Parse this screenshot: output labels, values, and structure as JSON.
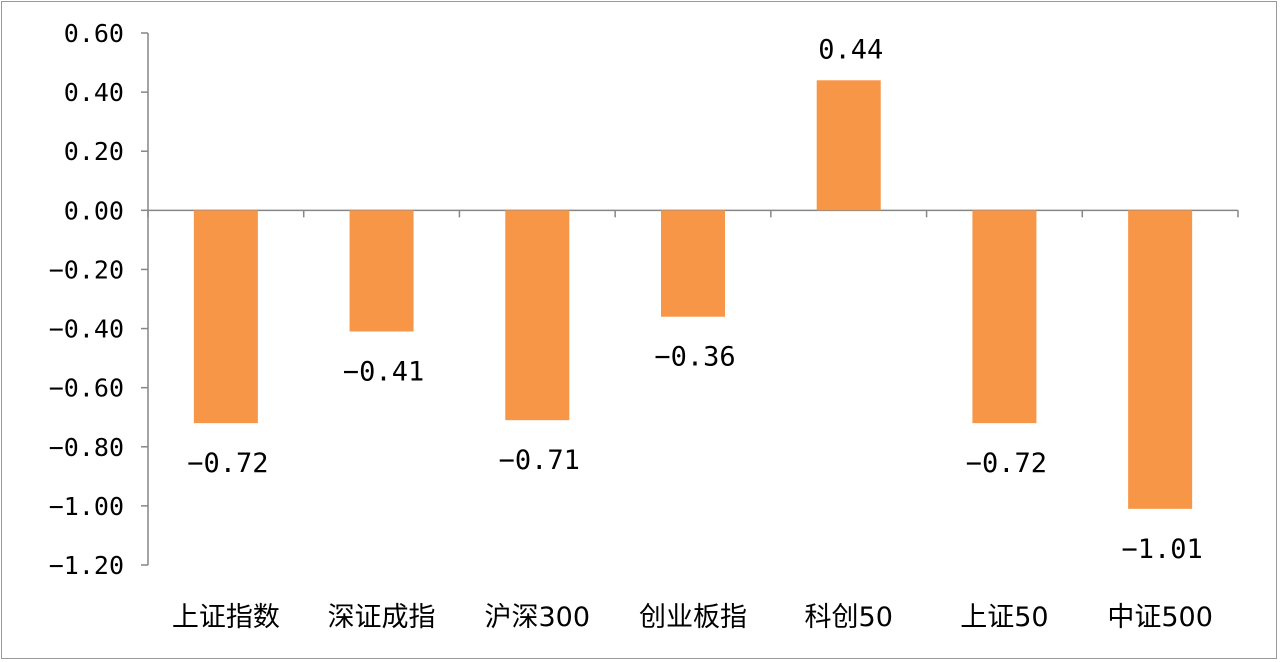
{
  "chart_data": {
    "type": "bar",
    "title": "",
    "xlabel": "",
    "ylabel": "",
    "categories": [
      "上证指数",
      "深证成指",
      "沪深300",
      "创业板指",
      "科创50",
      "上证50",
      "中证500"
    ],
    "values": [
      -0.72,
      -0.41,
      -0.71,
      -0.36,
      0.44,
      -0.72,
      -1.01
    ],
    "value_labels": [
      "−0.72",
      "−0.41",
      "−0.71",
      "−0.36",
      "0.44",
      "−0.72",
      "−1.01"
    ],
    "ylim": [
      -1.2,
      0.6
    ],
    "yticks": [
      0.6,
      0.4,
      0.2,
      0.0,
      -0.2,
      -0.4,
      -0.6,
      -0.8,
      -1.0,
      -1.2
    ],
    "ytick_labels": [
      "0.60",
      "0.40",
      "0.20",
      "0.00",
      "−0.20",
      "−0.40",
      "−0.60",
      "−0.80",
      "−1.00",
      "−1.20"
    ],
    "grid": false,
    "legend": "none",
    "bar_color": "#F79646",
    "axis_color": "#868686"
  }
}
